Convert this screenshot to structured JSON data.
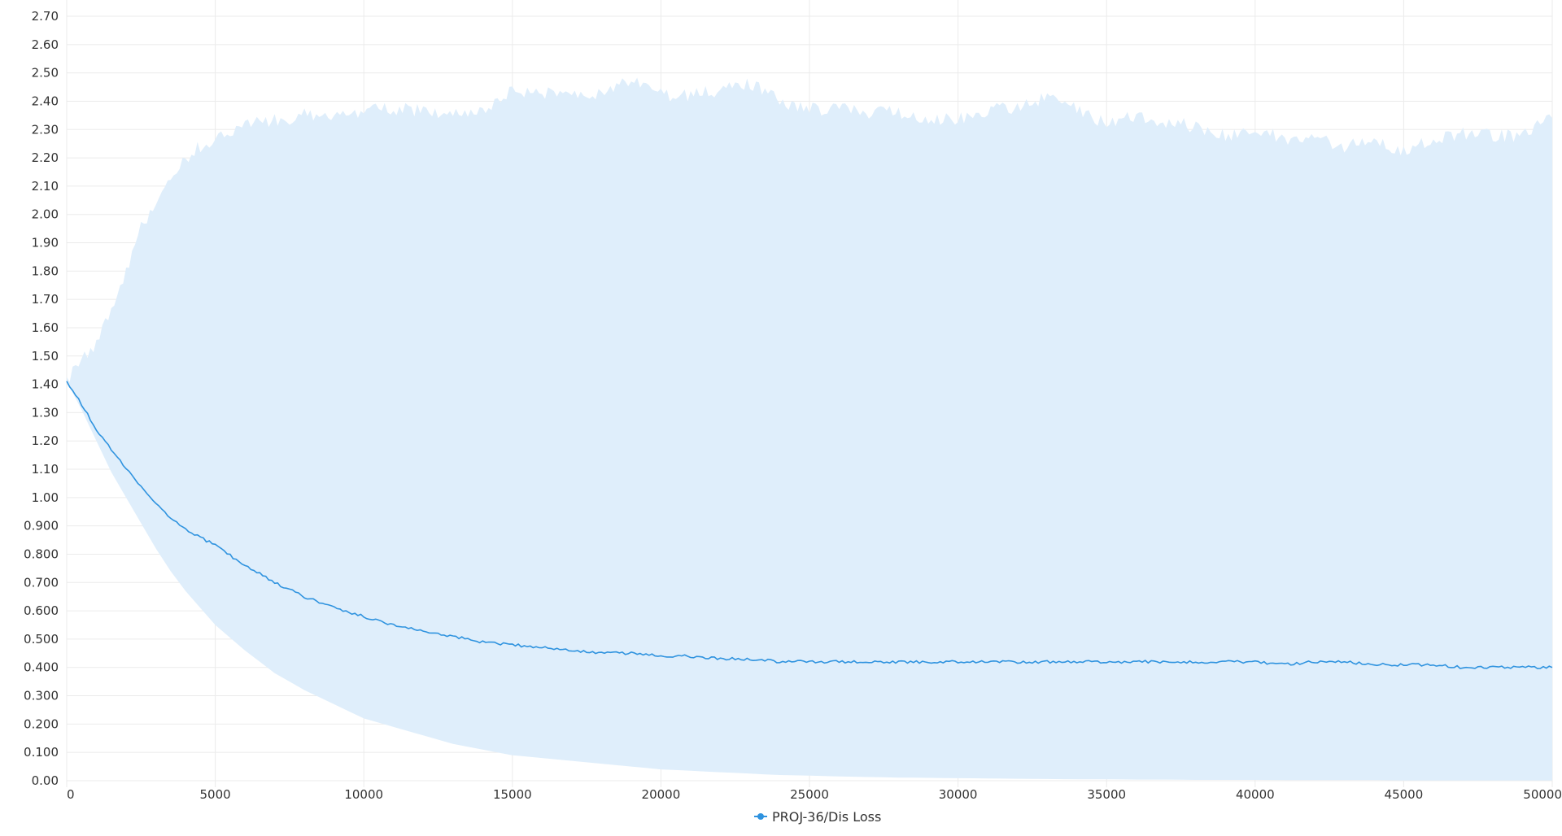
{
  "chart_data": {
    "type": "line",
    "title": "",
    "xlabel": "",
    "ylabel": "",
    "xlim": [
      0,
      50000
    ],
    "ylim": [
      0,
      2.7
    ],
    "grid": true,
    "legend_position": "bottom-center",
    "x_ticks": [
      0,
      5000,
      10000,
      15000,
      20000,
      25000,
      30000,
      35000,
      40000,
      45000,
      50000
    ],
    "x_tick_labels": [
      "0",
      "5000",
      "10000",
      "15000",
      "20000",
      "25000",
      "30000",
      "35000",
      "40000",
      "45000",
      "50000"
    ],
    "y_ticks": [
      0,
      0.1,
      0.2,
      0.3,
      0.4,
      0.5,
      0.6,
      0.7,
      0.8,
      0.9,
      1.0,
      1.1,
      1.2,
      1.3,
      1.4,
      1.5,
      1.6,
      1.7,
      1.8,
      1.9,
      2.0,
      2.1,
      2.2,
      2.3,
      2.4,
      2.5,
      2.6,
      2.7
    ],
    "y_tick_labels": [
      "0.00",
      "0.100",
      "0.200",
      "0.300",
      "0.400",
      "0.500",
      "0.600",
      "0.700",
      "0.800",
      "0.900",
      "1.00",
      "1.10",
      "1.20",
      "1.30",
      "1.40",
      "1.50",
      "1.60",
      "1.70",
      "1.80",
      "1.90",
      "2.00",
      "2.10",
      "2.20",
      "2.30",
      "2.40",
      "2.50",
      "2.60",
      "2.70"
    ],
    "series": [
      {
        "name": "PROJ-36/Dis Loss",
        "color": "#2f93df",
        "band_color": "#dfeefb",
        "x": [
          0,
          500,
          1000,
          1500,
          2000,
          2500,
          3000,
          3500,
          4000,
          4500,
          5000,
          6000,
          7000,
          8000,
          9000,
          10000,
          11000,
          12000,
          13000,
          14000,
          15000,
          16000,
          17000,
          18000,
          19000,
          20000,
          21000,
          22000,
          23000,
          24000,
          25000,
          26000,
          27000,
          28000,
          29000,
          30000,
          31000,
          32000,
          33000,
          34000,
          35000,
          36000,
          37000,
          38000,
          39000,
          40000,
          41000,
          42000,
          43000,
          44000,
          45000,
          46000,
          47000,
          48000,
          49000,
          50000
        ],
        "y": [
          1.41,
          1.33,
          1.24,
          1.17,
          1.1,
          1.04,
          0.98,
          0.93,
          0.89,
          0.86,
          0.83,
          0.76,
          0.7,
          0.65,
          0.61,
          0.58,
          0.55,
          0.53,
          0.51,
          0.49,
          0.48,
          0.47,
          0.46,
          0.45,
          0.45,
          0.44,
          0.44,
          0.43,
          0.43,
          0.42,
          0.42,
          0.42,
          0.42,
          0.42,
          0.42,
          0.42,
          0.42,
          0.42,
          0.42,
          0.42,
          0.42,
          0.42,
          0.42,
          0.42,
          0.42,
          0.42,
          0.41,
          0.42,
          0.42,
          0.41,
          0.41,
          0.41,
          0.4,
          0.4,
          0.4,
          0.4
        ],
        "upper": [
          1.41,
          1.48,
          1.55,
          1.65,
          1.8,
          1.95,
          2.02,
          2.12,
          2.2,
          2.24,
          2.26,
          2.32,
          2.33,
          2.35,
          2.34,
          2.37,
          2.37,
          2.37,
          2.36,
          2.37,
          2.44,
          2.43,
          2.43,
          2.42,
          2.48,
          2.42,
          2.42,
          2.44,
          2.46,
          2.4,
          2.37,
          2.37,
          2.36,
          2.36,
          2.34,
          2.34,
          2.37,
          2.38,
          2.41,
          2.38,
          2.32,
          2.35,
          2.33,
          2.31,
          2.28,
          2.3,
          2.27,
          2.27,
          2.24,
          2.26,
          2.22,
          2.27,
          2.29,
          2.28,
          2.28,
          2.34
        ],
        "lower": [
          1.41,
          1.31,
          1.2,
          1.09,
          1.0,
          0.91,
          0.82,
          0.74,
          0.67,
          0.61,
          0.55,
          0.46,
          0.38,
          0.32,
          0.27,
          0.22,
          0.19,
          0.16,
          0.13,
          0.11,
          0.09,
          0.08,
          0.07,
          0.06,
          0.05,
          0.04,
          0.035,
          0.03,
          0.025,
          0.02,
          0.018,
          0.015,
          0.013,
          0.011,
          0.01,
          0.009,
          0.008,
          0.007,
          0.006,
          0.005,
          0.005,
          0.004,
          0.004,
          0.003,
          0.003,
          0.003,
          0.002,
          0.002,
          0.002,
          0.002,
          0.001,
          0.001,
          0.001,
          0.001,
          0.001,
          0.001
        ]
      }
    ]
  }
}
